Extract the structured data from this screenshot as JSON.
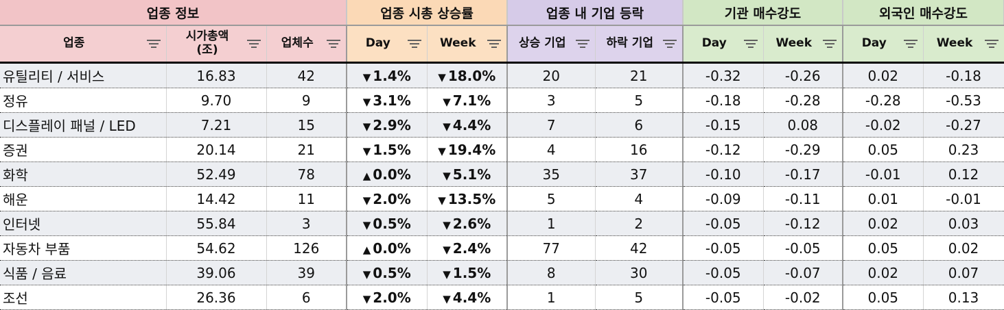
{
  "groups": {
    "info": "업종 정보",
    "market": "업종 시총 상승률",
    "advance": "업종 내 기업 등락",
    "institution": "기관 매수강도",
    "foreign": "외국인 매수강도"
  },
  "subheaders": {
    "sector": "업종",
    "market_cap": "시가총액\n(조)",
    "company_count": "업체수",
    "market_day": "Day",
    "market_week": "Week",
    "rising": "상승 기업",
    "falling": "하락 기업",
    "inst_day": "Day",
    "inst_week": "Week",
    "for_day": "Day",
    "for_week": "Week"
  },
  "icons": {
    "filter": "filter-icon",
    "up": "triangle-up-icon",
    "down": "triangle-down-icon"
  },
  "colors": {
    "up": "#e31b1b",
    "down": "#1a1ae6"
  },
  "rows": [
    {
      "sector": "유틸리티 / 서비스",
      "cap": "16.83",
      "count": "42",
      "mday": {
        "dir": "down",
        "arrow": "▼",
        "val": "1.4%"
      },
      "mweek": {
        "dir": "down",
        "arrow": "▼",
        "val": "18.0%"
      },
      "rise": "20",
      "fall": "21",
      "iday": "-0.32",
      "iweek": "-0.26",
      "fday": "0.02",
      "fweek": "-0.18"
    },
    {
      "sector": "정유",
      "cap": "9.70",
      "count": "9",
      "mday": {
        "dir": "down",
        "arrow": "▼",
        "val": "3.1%"
      },
      "mweek": {
        "dir": "down",
        "arrow": "▼",
        "val": "7.1%"
      },
      "rise": "3",
      "fall": "5",
      "iday": "-0.18",
      "iweek": "-0.28",
      "fday": "-0.28",
      "fweek": "-0.53"
    },
    {
      "sector": "디스플레이 패널 / LED",
      "cap": "7.21",
      "count": "15",
      "mday": {
        "dir": "down",
        "arrow": "▼",
        "val": "2.9%"
      },
      "mweek": {
        "dir": "down",
        "arrow": "▼",
        "val": "4.4%"
      },
      "rise": "7",
      "fall": "6",
      "iday": "-0.15",
      "iweek": "0.08",
      "fday": "-0.02",
      "fweek": "-0.27"
    },
    {
      "sector": "증권",
      "cap": "20.14",
      "count": "21",
      "mday": {
        "dir": "down",
        "arrow": "▼",
        "val": "1.5%"
      },
      "mweek": {
        "dir": "down",
        "arrow": "▼",
        "val": "19.4%"
      },
      "rise": "4",
      "fall": "16",
      "iday": "-0.12",
      "iweek": "-0.29",
      "fday": "0.05",
      "fweek": "0.23"
    },
    {
      "sector": "화학",
      "cap": "52.49",
      "count": "78",
      "mday": {
        "dir": "up",
        "arrow": "▲",
        "val": "0.0%"
      },
      "mweek": {
        "dir": "down",
        "arrow": "▼",
        "val": "5.1%"
      },
      "rise": "35",
      "fall": "37",
      "iday": "-0.10",
      "iweek": "-0.17",
      "fday": "-0.01",
      "fweek": "0.12"
    },
    {
      "sector": "해운",
      "cap": "14.42",
      "count": "11",
      "mday": {
        "dir": "down",
        "arrow": "▼",
        "val": "2.0%"
      },
      "mweek": {
        "dir": "down",
        "arrow": "▼",
        "val": "13.5%"
      },
      "rise": "5",
      "fall": "4",
      "iday": "-0.09",
      "iweek": "-0.11",
      "fday": "0.01",
      "fweek": "-0.01"
    },
    {
      "sector": "인터넷",
      "cap": "55.84",
      "count": "3",
      "mday": {
        "dir": "down",
        "arrow": "▼",
        "val": "0.5%"
      },
      "mweek": {
        "dir": "down",
        "arrow": "▼",
        "val": "2.6%"
      },
      "rise": "1",
      "fall": "2",
      "iday": "-0.05",
      "iweek": "-0.12",
      "fday": "0.02",
      "fweek": "0.03"
    },
    {
      "sector": "자동차 부품",
      "cap": "54.62",
      "count": "126",
      "mday": {
        "dir": "up",
        "arrow": "▲",
        "val": "0.0%"
      },
      "mweek": {
        "dir": "down",
        "arrow": "▼",
        "val": "2.4%"
      },
      "rise": "77",
      "fall": "42",
      "iday": "-0.05",
      "iweek": "-0.05",
      "fday": "0.05",
      "fweek": "0.02"
    },
    {
      "sector": "식품 / 음료",
      "cap": "39.06",
      "count": "39",
      "mday": {
        "dir": "down",
        "arrow": "▼",
        "val": "0.5%"
      },
      "mweek": {
        "dir": "down",
        "arrow": "▼",
        "val": "1.5%"
      },
      "rise": "8",
      "fall": "30",
      "iday": "-0.05",
      "iweek": "-0.07",
      "fday": "0.02",
      "fweek": "0.07"
    },
    {
      "sector": "조선",
      "cap": "26.36",
      "count": "6",
      "mday": {
        "dir": "down",
        "arrow": "▼",
        "val": "2.0%"
      },
      "mweek": {
        "dir": "down",
        "arrow": "▼",
        "val": "4.4%"
      },
      "rise": "1",
      "fall": "5",
      "iday": "-0.05",
      "iweek": "-0.02",
      "fday": "0.05",
      "fweek": "0.13"
    }
  ]
}
